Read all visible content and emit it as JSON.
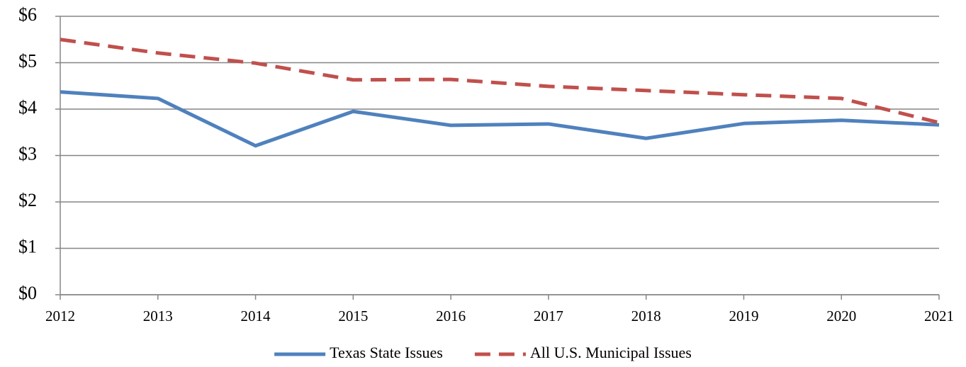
{
  "chart_data": {
    "type": "line",
    "categories": [
      "2012",
      "2013",
      "2014",
      "2015",
      "2016",
      "2017",
      "2018",
      "2019",
      "2020",
      "2021"
    ],
    "series": [
      {
        "name": "Texas State Issues",
        "color": "#4f81bd",
        "dash": false,
        "values": [
          4.37,
          4.23,
          3.21,
          3.95,
          3.65,
          3.68,
          3.37,
          3.69,
          3.76,
          3.66
        ]
      },
      {
        "name": "All U.S. Municipal Issues",
        "color": "#c0504d",
        "dash": true,
        "values": [
          5.5,
          5.21,
          4.99,
          4.63,
          4.64,
          4.49,
          4.4,
          4.31,
          4.23,
          3.71
        ]
      }
    ],
    "ylim": [
      0,
      6
    ],
    "yticks": [
      {
        "value": 0,
        "label": "$0"
      },
      {
        "value": 1,
        "label": "$1"
      },
      {
        "value": 2,
        "label": "$2"
      },
      {
        "value": 3,
        "label": "$3"
      },
      {
        "value": 4,
        "label": "$4"
      },
      {
        "value": 5,
        "label": "$5"
      },
      {
        "value": 6,
        "label": "$6"
      }
    ],
    "grid": true,
    "legend": "bottom"
  }
}
